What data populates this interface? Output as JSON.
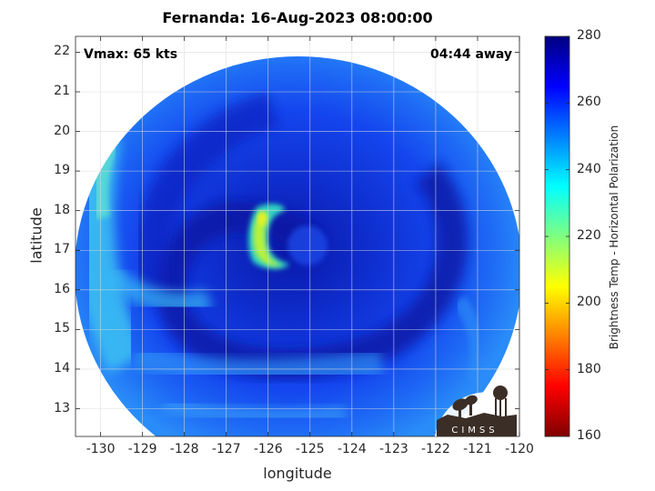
{
  "title": "Fernanda: 16-Aug-2023 08:00:00",
  "annotations": {
    "vmax": "Vmax: 65 kts",
    "away": "04:44 away"
  },
  "axes": {
    "xlabel": "longitude",
    "ylabel": "latitude",
    "xlim": [
      -130.6,
      -120
    ],
    "ylim": [
      12.3,
      22.4
    ],
    "xticks": [
      "-130",
      "-129",
      "-128",
      "-127",
      "-126",
      "-125",
      "-124",
      "-123",
      "-122",
      "-121",
      "-120"
    ],
    "yticks": [
      "22",
      "21",
      "20",
      "19",
      "18",
      "17",
      "16",
      "15",
      "14",
      "13"
    ],
    "grid": true
  },
  "colorbar": {
    "label": "Brightness Temp - Horizontal Polarization",
    "ticks": [
      "280",
      "260",
      "240",
      "220",
      "200",
      "180",
      "160"
    ],
    "range": [
      160,
      280
    ],
    "colormap": "jet"
  },
  "map": {
    "storm_center": {
      "lon": -125.2,
      "lat": 17.0
    },
    "swath_center": {
      "lon": -125.3,
      "lat": 17.5
    },
    "eyewall_feature": {
      "lon_range": [
        -126.2,
        -125.7
      ],
      "lat_range": [
        16.5,
        18.2
      ],
      "min_brightness_temp": 210
    },
    "background_temp": 265
  },
  "logo": {
    "text": "CIMSS"
  }
}
